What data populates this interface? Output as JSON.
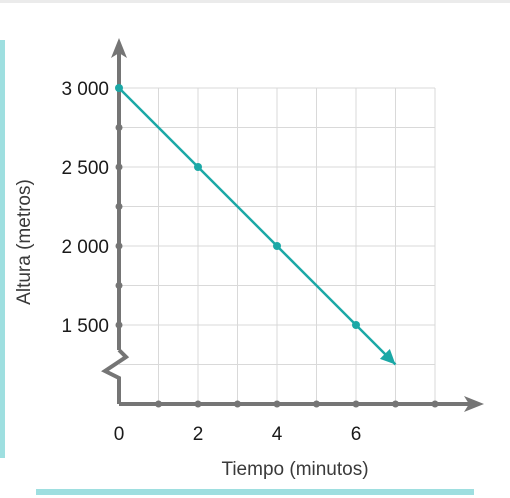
{
  "colors": {
    "accent": "#1ba8a6",
    "axis": "#757575",
    "grid": "#d9d9d9",
    "frame": "#9edfe0"
  },
  "chart_data": {
    "type": "line",
    "title": "",
    "xlabel": "Tiempo (minutos)",
    "ylabel": "Altura (metros)",
    "x_ticks": [
      "0",
      "2",
      "4",
      "6"
    ],
    "y_ticks": [
      "1 500",
      "2 000",
      "2 500",
      "3 000"
    ],
    "x_tick_values": [
      0,
      2,
      4,
      6
    ],
    "y_tick_values": [
      1500,
      2000,
      2500,
      3000
    ],
    "xlim": [
      0,
      8
    ],
    "ylim": [
      1000,
      3000
    ],
    "y_axis_break": true,
    "grid": true,
    "series": [
      {
        "x": [
          0,
          2,
          4,
          6
        ],
        "y": [
          3000,
          2500,
          2000,
          1500
        ],
        "arrow_end": [
          7,
          1250
        ]
      }
    ]
  }
}
